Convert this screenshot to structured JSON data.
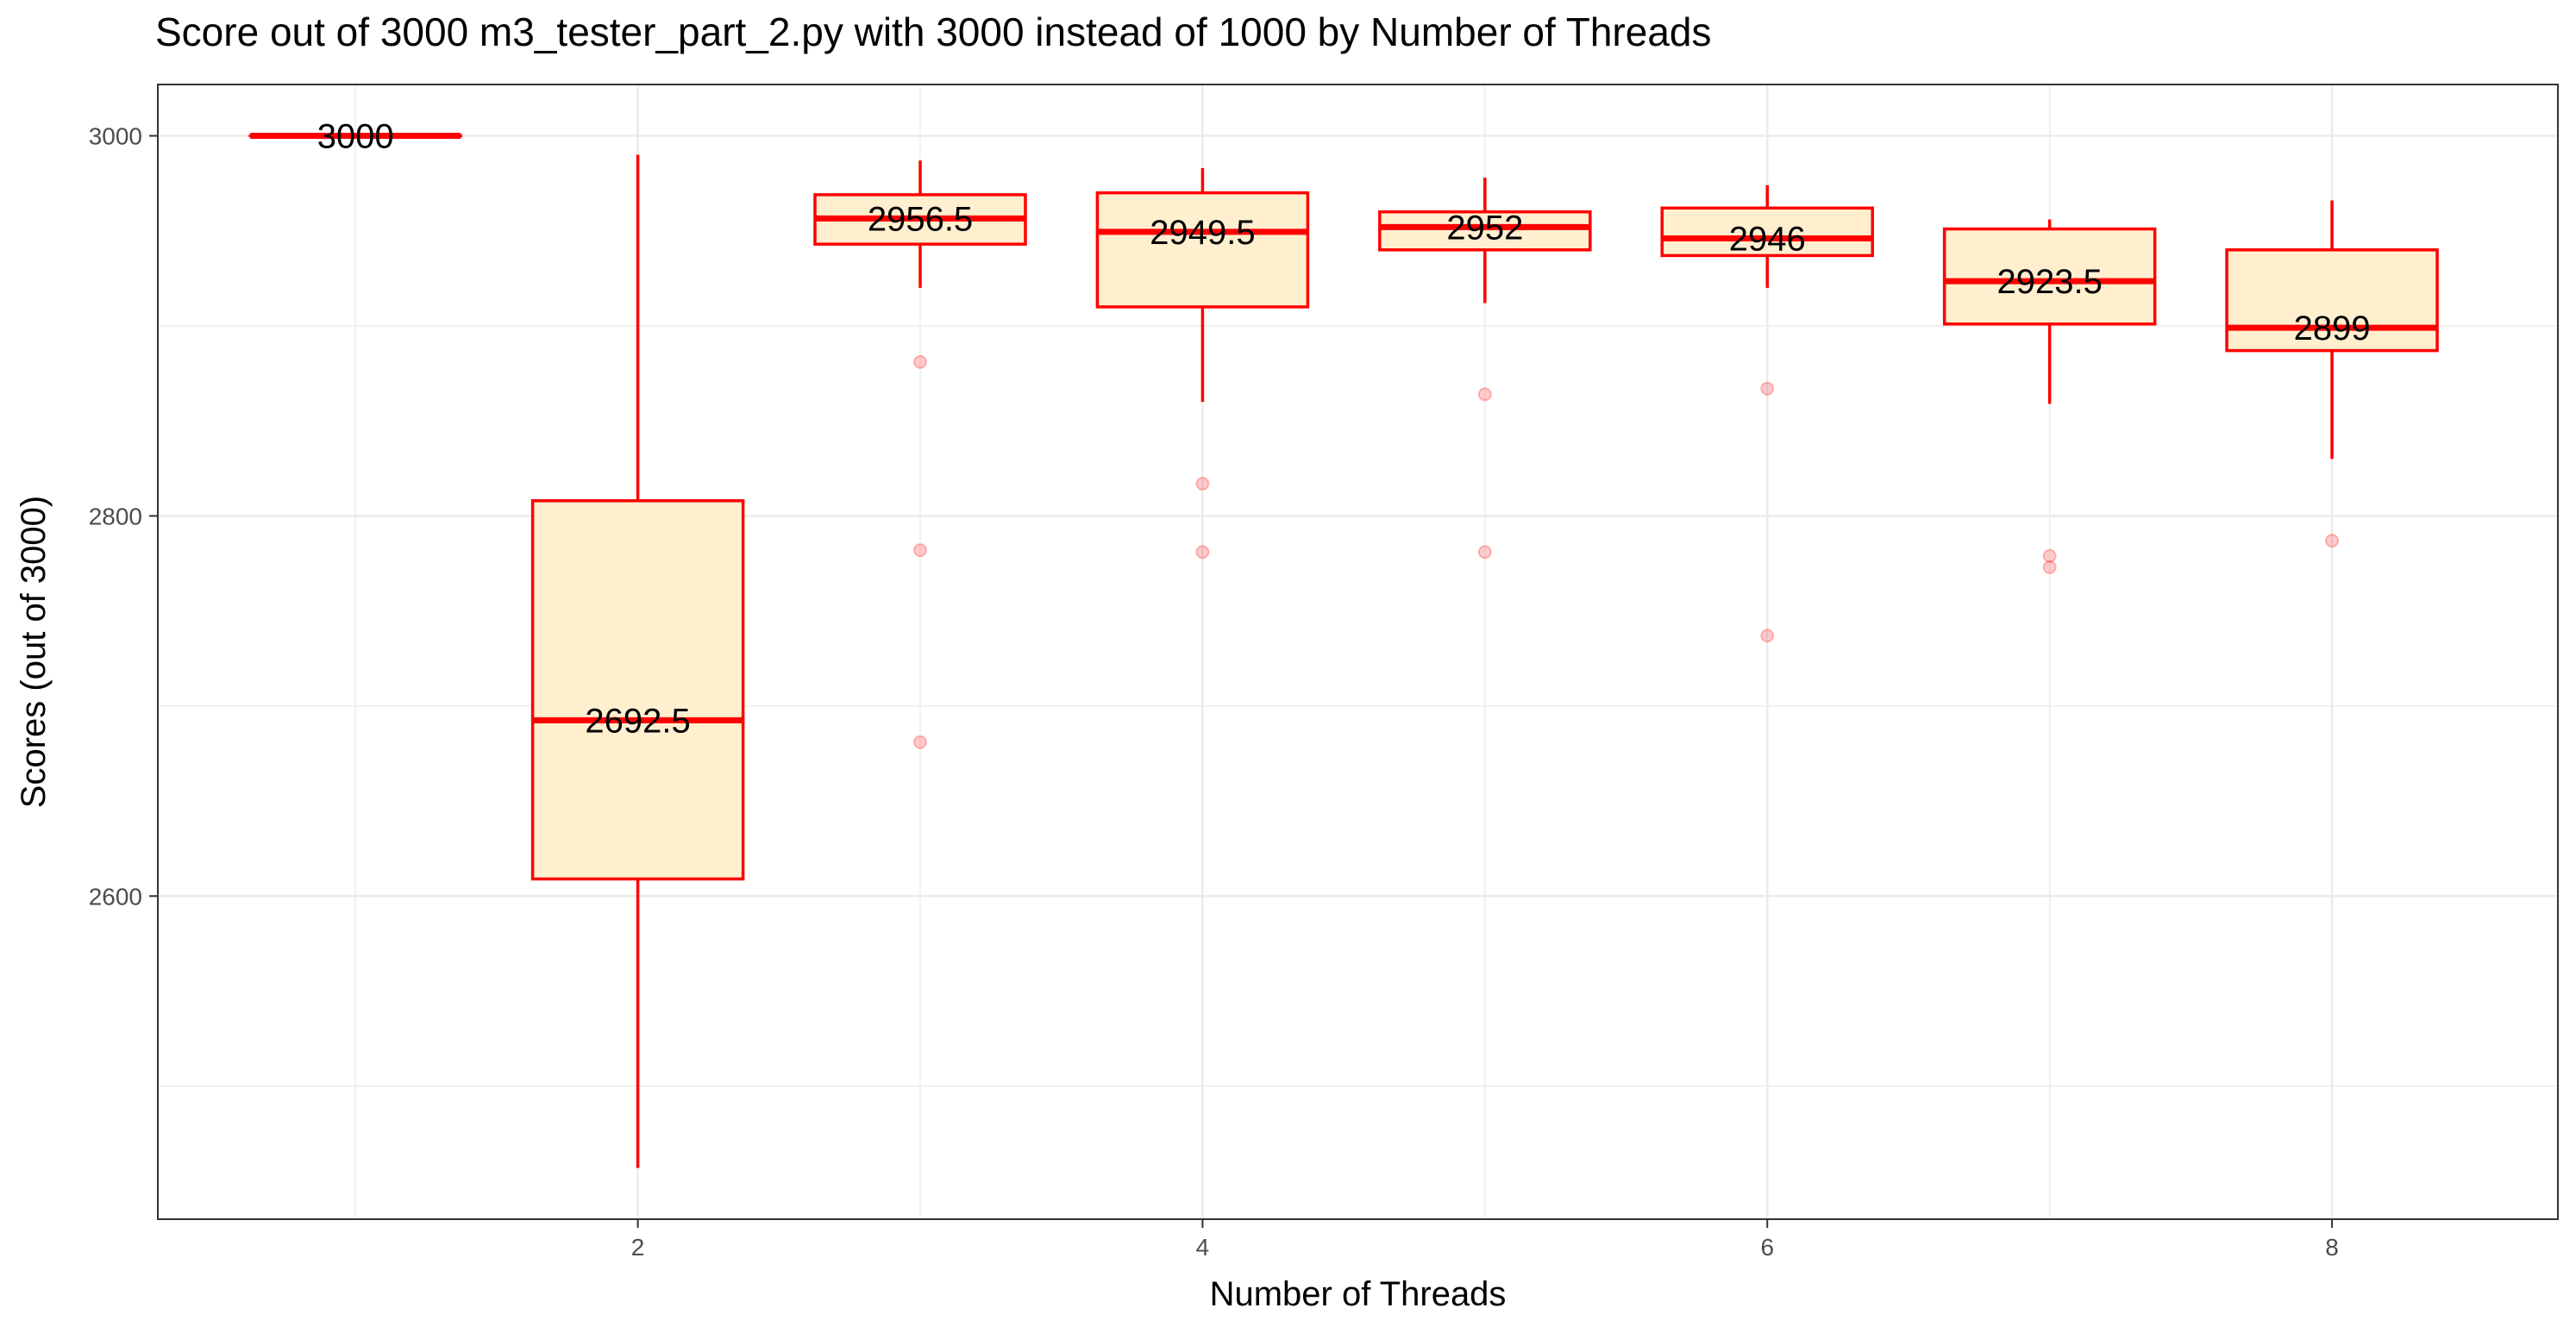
{
  "chart_data": {
    "type": "box",
    "title": "Score out of 3000 m3_tester_part_2.py with 3000 instead of 1000 by Number of Threads",
    "xlabel": "Number of Threads",
    "ylabel": "Scores (out of 3000)",
    "xlim": [
      0.3,
      8.8
    ],
    "ylim": [
      2430,
      3027
    ],
    "x_ticks": [
      2,
      4,
      6,
      8
    ],
    "y_ticks": [
      2600,
      2800,
      3000
    ],
    "grid": true,
    "colors": {
      "box_fill": "#ffefcf",
      "box_stroke": "#ff0000",
      "median": "#ff0000",
      "whisker": "#ff0000",
      "outlier": "#ff0000",
      "grid": "#ebebeb",
      "panel_border": "#333333"
    },
    "boxes": [
      {
        "x": 1,
        "q1": 3000,
        "median": 3000,
        "q3": 3000,
        "whisker_low": 3000,
        "whisker_high": 3000,
        "median_label": "3000",
        "outliers": []
      },
      {
        "x": 2,
        "q1": 2609,
        "median": 2692.5,
        "q3": 2808,
        "whisker_low": 2457,
        "whisker_high": 2990,
        "median_label": "2692.5",
        "outliers": []
      },
      {
        "x": 3,
        "q1": 2943,
        "median": 2956.5,
        "q3": 2969,
        "whisker_low": 2920,
        "whisker_high": 2987,
        "median_label": "2956.5",
        "outliers": [
          2881,
          2782,
          2681
        ]
      },
      {
        "x": 4,
        "q1": 2910,
        "median": 2949.5,
        "q3": 2970,
        "whisker_low": 2860,
        "whisker_high": 2983,
        "median_label": "2949.5",
        "outliers": [
          2817,
          2781
        ]
      },
      {
        "x": 5,
        "q1": 2940,
        "median": 2952,
        "q3": 2960,
        "whisker_low": 2912,
        "whisker_high": 2978,
        "median_label": "2952",
        "outliers": [
          2864,
          2781
        ]
      },
      {
        "x": 6,
        "q1": 2937,
        "median": 2946,
        "q3": 2962,
        "whisker_low": 2920,
        "whisker_high": 2974,
        "median_label": "2946",
        "outliers": [
          2867,
          2737
        ]
      },
      {
        "x": 7,
        "q1": 2901,
        "median": 2923.5,
        "q3": 2951,
        "whisker_low": 2859,
        "whisker_high": 2956,
        "median_label": "2923.5",
        "outliers": [
          2779,
          2773
        ]
      },
      {
        "x": 8,
        "q1": 2887,
        "median": 2899,
        "q3": 2940,
        "whisker_low": 2830,
        "whisker_high": 2966,
        "median_label": "2899",
        "outliers": [
          2787
        ]
      }
    ]
  }
}
